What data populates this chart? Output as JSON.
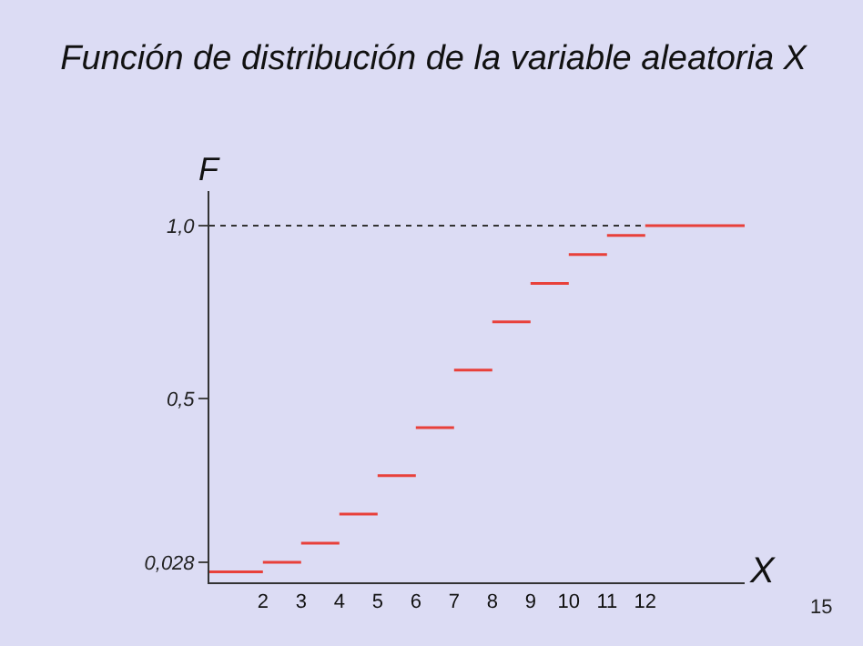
{
  "chart_data": {
    "type": "step",
    "title": "Función de distribución de la variable aleatoria X",
    "xlabel": "X",
    "ylabel": "F",
    "x": [
      0.6,
      2,
      3,
      4,
      5,
      6,
      7,
      8,
      9,
      10,
      11,
      12,
      14.6
    ],
    "series": [
      {
        "color": "#e8403a",
        "values": [
          0,
          0.028,
          0.083,
          0.167,
          0.278,
          0.417,
          0.583,
          0.722,
          0.833,
          0.917,
          0.972,
          1.0,
          1.0
        ]
      },
      {
        "type": "line",
        "x": [
          0.6,
          12
        ],
        "values": [
          1.0,
          1.0
        ],
        "color": "#333333",
        "line_style": "dotted"
      }
    ],
    "xlim": [
      0.6,
      14.6
    ],
    "ylim": [
      -0.03,
      1.1
    ],
    "xticks": [
      2,
      3,
      4,
      5,
      6,
      7,
      8,
      9,
      10,
      11,
      12
    ],
    "yticks": [
      {
        "value": 0.028,
        "label": "0,028"
      },
      {
        "value": 0.5,
        "label": "0,5"
      },
      {
        "value": 1.0,
        "label": "1,0"
      }
    ],
    "annotations": [
      "15"
    ]
  }
}
